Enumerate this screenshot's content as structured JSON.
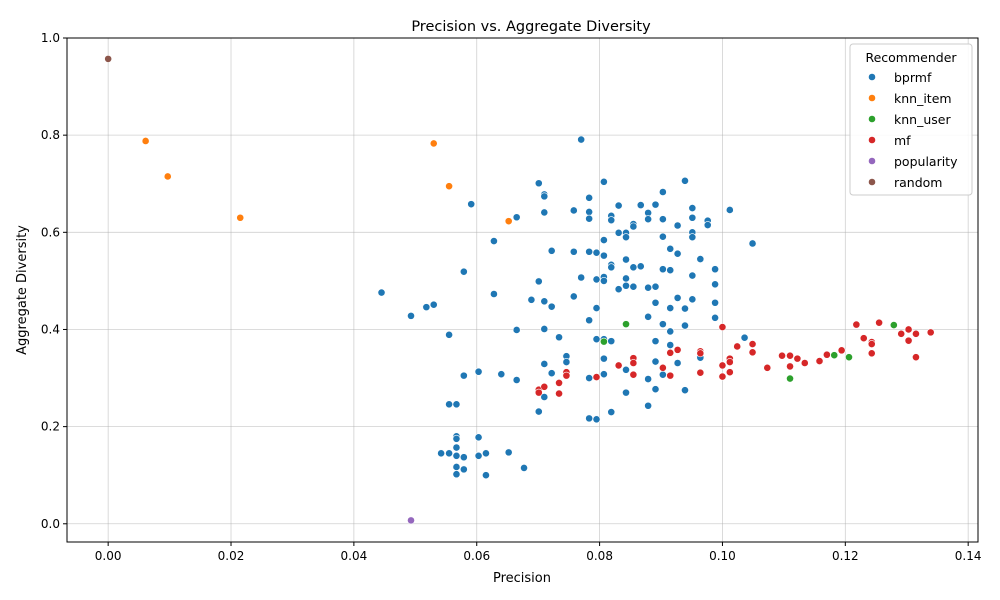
{
  "chart_data": {
    "type": "scatter",
    "title": "Precision vs. Aggregate Diversity",
    "xlabel": "Precision",
    "ylabel": "Aggregate Diversity",
    "xlim": [
      -0.0067,
      0.1416
    ],
    "ylim": [
      -0.0375,
      1.0
    ],
    "xticks": [
      "0.00",
      "0.02",
      "0.04",
      "0.06",
      "0.08",
      "0.10",
      "0.12",
      "0.14"
    ],
    "xtick_values": [
      0,
      0.02,
      0.04,
      0.06,
      0.08,
      0.1,
      0.12,
      0.14
    ],
    "yticks": [
      "0.0",
      "0.2",
      "0.4",
      "0.6",
      "0.8",
      "1.0"
    ],
    "ytick_values": [
      0,
      0.2,
      0.4,
      0.6,
      0.8,
      1.0
    ],
    "grid": true,
    "legend": {
      "title": "Recommender",
      "position": "top-right"
    },
    "series": [
      {
        "name": "bprmf",
        "color": "#1f77b4",
        "points": [
          [
            0.0445,
            0.476
          ],
          [
            0.0493,
            0.428
          ],
          [
            0.0518,
            0.446
          ],
          [
            0.053,
            0.451
          ],
          [
            0.0555,
            0.389
          ],
          [
            0.0555,
            0.246
          ],
          [
            0.0567,
            0.246
          ],
          [
            0.0579,
            0.519
          ],
          [
            0.0579,
            0.305
          ],
          [
            0.0591,
            0.658
          ],
          [
            0.0603,
            0.313
          ],
          [
            0.0628,
            0.582
          ],
          [
            0.0628,
            0.473
          ],
          [
            0.064,
            0.308
          ],
          [
            0.0665,
            0.631
          ],
          [
            0.0665,
            0.399
          ],
          [
            0.0665,
            0.296
          ],
          [
            0.0689,
            0.461
          ],
          [
            0.0701,
            0.701
          ],
          [
            0.0701,
            0.499
          ],
          [
            0.0701,
            0.231
          ],
          [
            0.071,
            0.678
          ],
          [
            0.071,
            0.674
          ],
          [
            0.071,
            0.641
          ],
          [
            0.071,
            0.458
          ],
          [
            0.071,
            0.401
          ],
          [
            0.071,
            0.329
          ],
          [
            0.071,
            0.261
          ],
          [
            0.0722,
            0.562
          ],
          [
            0.0722,
            0.447
          ],
          [
            0.0722,
            0.31
          ],
          [
            0.0734,
            0.384
          ],
          [
            0.0746,
            0.345
          ],
          [
            0.0746,
            0.333
          ],
          [
            0.0746,
            0.311
          ],
          [
            0.0758,
            0.645
          ],
          [
            0.0758,
            0.56
          ],
          [
            0.0758,
            0.468
          ],
          [
            0.077,
            0.791
          ],
          [
            0.077,
            0.507
          ],
          [
            0.0783,
            0.671
          ],
          [
            0.0783,
            0.642
          ],
          [
            0.0783,
            0.628
          ],
          [
            0.0783,
            0.56
          ],
          [
            0.0783,
            0.419
          ],
          [
            0.0783,
            0.3
          ],
          [
            0.0783,
            0.217
          ],
          [
            0.0795,
            0.558
          ],
          [
            0.0795,
            0.503
          ],
          [
            0.0795,
            0.444
          ],
          [
            0.0795,
            0.38
          ],
          [
            0.0795,
            0.215
          ],
          [
            0.0807,
            0.704
          ],
          [
            0.0807,
            0.584
          ],
          [
            0.0807,
            0.552
          ],
          [
            0.0807,
            0.508
          ],
          [
            0.0807,
            0.5
          ],
          [
            0.0807,
            0.38
          ],
          [
            0.0807,
            0.34
          ],
          [
            0.0807,
            0.308
          ],
          [
            0.0819,
            0.634
          ],
          [
            0.0819,
            0.625
          ],
          [
            0.0819,
            0.533
          ],
          [
            0.0819,
            0.528
          ],
          [
            0.0819,
            0.376
          ],
          [
            0.0819,
            0.23
          ],
          [
            0.0831,
            0.655
          ],
          [
            0.0831,
            0.599
          ],
          [
            0.0831,
            0.483
          ],
          [
            0.0843,
            0.599
          ],
          [
            0.0843,
            0.59
          ],
          [
            0.0843,
            0.544
          ],
          [
            0.0843,
            0.505
          ],
          [
            0.0843,
            0.49
          ],
          [
            0.0843,
            0.317
          ],
          [
            0.0843,
            0.27
          ],
          [
            0.0855,
            0.617
          ],
          [
            0.0855,
            0.612
          ],
          [
            0.0855,
            0.528
          ],
          [
            0.0855,
            0.488
          ],
          [
            0.0867,
            0.656
          ],
          [
            0.0867,
            0.53
          ],
          [
            0.0879,
            0.64
          ],
          [
            0.0879,
            0.627
          ],
          [
            0.0879,
            0.486
          ],
          [
            0.0879,
            0.426
          ],
          [
            0.0879,
            0.298
          ],
          [
            0.0879,
            0.243
          ],
          [
            0.0891,
            0.657
          ],
          [
            0.0891,
            0.488
          ],
          [
            0.0891,
            0.455
          ],
          [
            0.0891,
            0.376
          ],
          [
            0.0891,
            0.334
          ],
          [
            0.0891,
            0.277
          ],
          [
            0.0903,
            0.683
          ],
          [
            0.0903,
            0.627
          ],
          [
            0.0903,
            0.591
          ],
          [
            0.0903,
            0.524
          ],
          [
            0.0903,
            0.411
          ],
          [
            0.0903,
            0.307
          ],
          [
            0.0915,
            0.566
          ],
          [
            0.0915,
            0.522
          ],
          [
            0.0915,
            0.444
          ],
          [
            0.0915,
            0.396
          ],
          [
            0.0915,
            0.368
          ],
          [
            0.0927,
            0.614
          ],
          [
            0.0927,
            0.556
          ],
          [
            0.0927,
            0.465
          ],
          [
            0.0927,
            0.331
          ],
          [
            0.0939,
            0.706
          ],
          [
            0.0939,
            0.443
          ],
          [
            0.0939,
            0.408
          ],
          [
            0.0939,
            0.275
          ],
          [
            0.0951,
            0.65
          ],
          [
            0.0951,
            0.63
          ],
          [
            0.0951,
            0.6
          ],
          [
            0.0951,
            0.59
          ],
          [
            0.0951,
            0.511
          ],
          [
            0.0951,
            0.462
          ],
          [
            0.0964,
            0.545
          ],
          [
            0.0964,
            0.342
          ],
          [
            0.0976,
            0.624
          ],
          [
            0.0976,
            0.615
          ],
          [
            0.0988,
            0.524
          ],
          [
            0.0988,
            0.493
          ],
          [
            0.0988,
            0.455
          ],
          [
            0.0988,
            0.424
          ],
          [
            0.1012,
            0.646
          ],
          [
            0.1036,
            0.383
          ],
          [
            0.1049,
            0.577
          ],
          [
            0.0567,
            0.18
          ],
          [
            0.0567,
            0.175
          ],
          [
            0.0567,
            0.157
          ],
          [
            0.0567,
            0.14
          ],
          [
            0.0567,
            0.117
          ],
          [
            0.0567,
            0.102
          ],
          [
            0.0542,
            0.145
          ],
          [
            0.0555,
            0.145
          ],
          [
            0.0579,
            0.137
          ],
          [
            0.0579,
            0.112
          ],
          [
            0.0603,
            0.178
          ],
          [
            0.0603,
            0.14
          ],
          [
            0.0615,
            0.145
          ],
          [
            0.0615,
            0.1
          ],
          [
            0.0652,
            0.147
          ],
          [
            0.0677,
            0.115
          ]
        ]
      },
      {
        "name": "knn_item",
        "color": "#ff7f0e",
        "points": [
          [
            0.0061,
            0.788
          ],
          [
            0.0097,
            0.715
          ],
          [
            0.0215,
            0.63
          ],
          [
            0.053,
            0.783
          ],
          [
            0.0555,
            0.695
          ],
          [
            0.0652,
            0.623
          ]
        ]
      },
      {
        "name": "knn_user",
        "color": "#2ca02c",
        "points": [
          [
            0.0807,
            0.375
          ],
          [
            0.0843,
            0.411
          ],
          [
            0.111,
            0.299
          ],
          [
            0.1182,
            0.347
          ],
          [
            0.1206,
            0.343
          ],
          [
            0.1279,
            0.409
          ]
        ]
      },
      {
        "name": "mf",
        "color": "#d62728",
        "points": [
          [
            0.0701,
            0.276
          ],
          [
            0.0701,
            0.27
          ],
          [
            0.071,
            0.282
          ],
          [
            0.0734,
            0.29
          ],
          [
            0.0734,
            0.268
          ],
          [
            0.0746,
            0.312
          ],
          [
            0.0746,
            0.305
          ],
          [
            0.0795,
            0.302
          ],
          [
            0.0831,
            0.326
          ],
          [
            0.0855,
            0.341
          ],
          [
            0.0855,
            0.331
          ],
          [
            0.0855,
            0.307
          ],
          [
            0.0903,
            0.321
          ],
          [
            0.0915,
            0.352
          ],
          [
            0.0915,
            0.305
          ],
          [
            0.0927,
            0.358
          ],
          [
            0.0964,
            0.355
          ],
          [
            0.0964,
            0.351
          ],
          [
            0.0964,
            0.311
          ],
          [
            0.1,
            0.405
          ],
          [
            0.1,
            0.326
          ],
          [
            0.1,
            0.303
          ],
          [
            0.1012,
            0.34
          ],
          [
            0.1012,
            0.333
          ],
          [
            0.1012,
            0.312
          ],
          [
            0.1024,
            0.365
          ],
          [
            0.1049,
            0.37
          ],
          [
            0.1049,
            0.353
          ],
          [
            0.1073,
            0.321
          ],
          [
            0.1097,
            0.346
          ],
          [
            0.111,
            0.346
          ],
          [
            0.111,
            0.324
          ],
          [
            0.1122,
            0.34
          ],
          [
            0.1134,
            0.331
          ],
          [
            0.1158,
            0.335
          ],
          [
            0.117,
            0.348
          ],
          [
            0.1194,
            0.357
          ],
          [
            0.1218,
            0.41
          ],
          [
            0.123,
            0.382
          ],
          [
            0.1243,
            0.374
          ],
          [
            0.1243,
            0.37
          ],
          [
            0.1243,
            0.351
          ],
          [
            0.1255,
            0.414
          ],
          [
            0.1291,
            0.391
          ],
          [
            0.1303,
            0.377
          ],
          [
            0.1303,
            0.4
          ],
          [
            0.1315,
            0.391
          ],
          [
            0.1315,
            0.343
          ],
          [
            0.1339,
            0.394
          ]
        ]
      },
      {
        "name": "popularity",
        "color": "#9467bd",
        "points": [
          [
            0.0493,
            0.007
          ]
        ]
      },
      {
        "name": "random",
        "color": "#8c564b",
        "points": [
          [
            0.0,
            0.957
          ]
        ]
      }
    ]
  }
}
